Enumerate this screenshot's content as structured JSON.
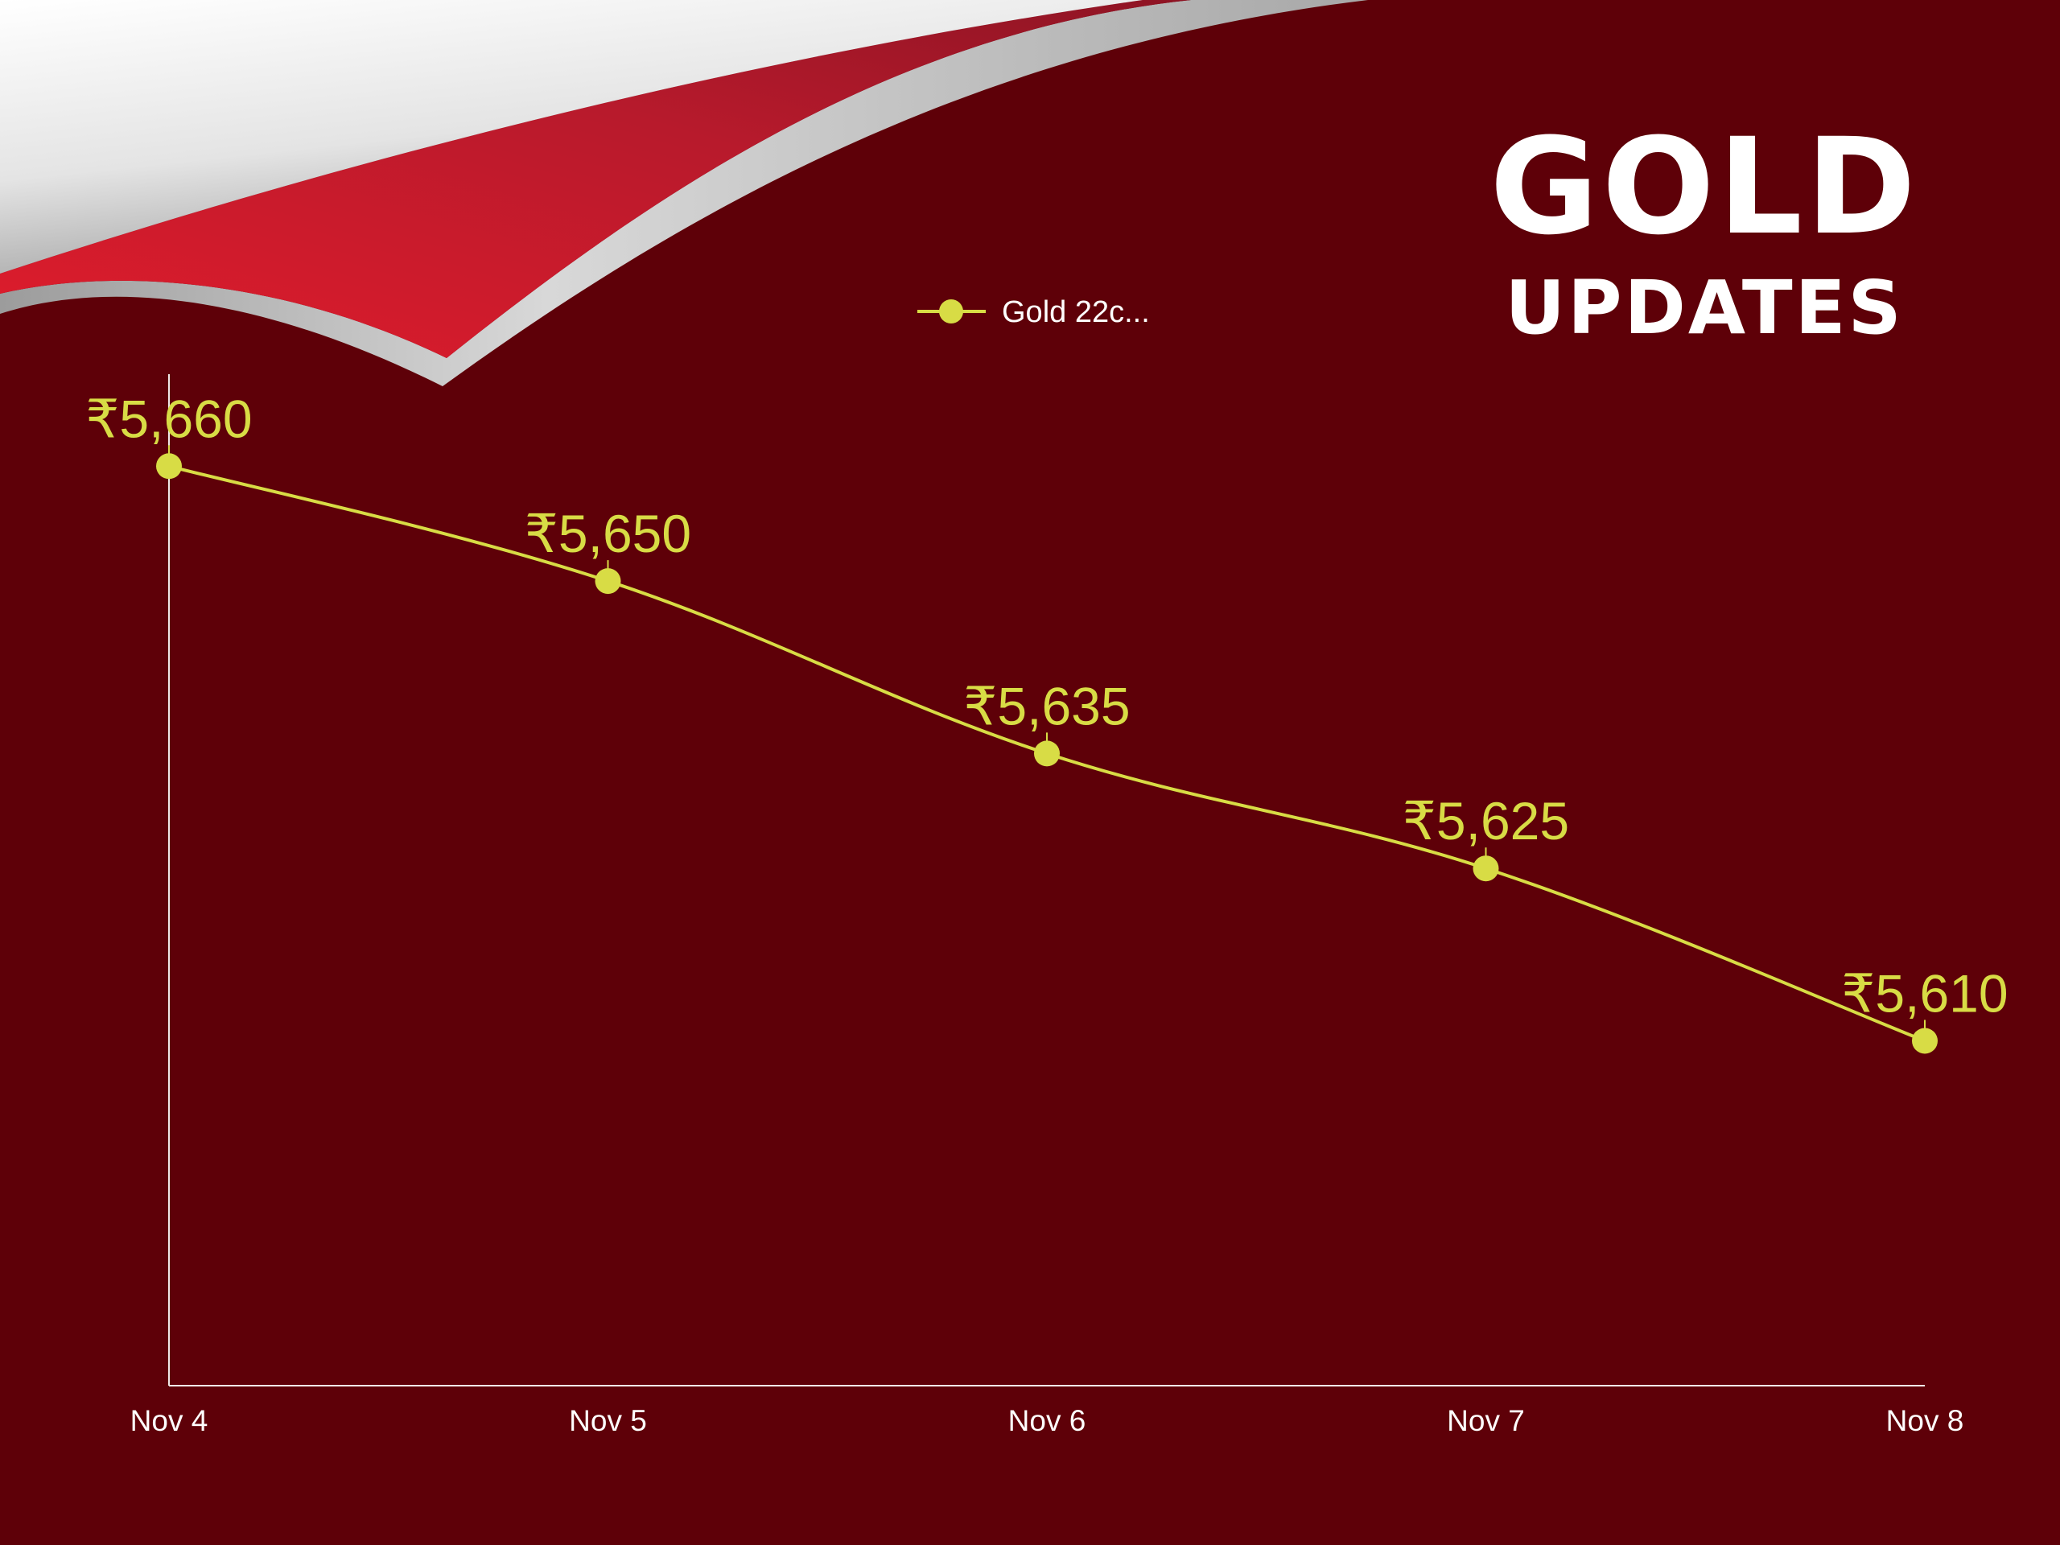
{
  "brand": {
    "title": "GOLD",
    "subtitle": "UPDATES"
  },
  "colors": {
    "background": "#5e0008",
    "series": "#d8dc45",
    "axis": "#f0e8e8",
    "text": "#ffffff",
    "curl_red": "#c41a2a",
    "curl_silver": "#cfcfcf"
  },
  "chart_data": {
    "type": "line",
    "categories": [
      "Nov 4",
      "Nov 5",
      "Nov 6",
      "Nov 7",
      "Nov 8"
    ],
    "series": [
      {
        "name": "Gold 22c...",
        "values": [
          5660,
          5650,
          5635,
          5625,
          5610
        ],
        "labels": [
          "₹5,660",
          "₹5,650",
          "₹5,635",
          "₹5,625",
          "₹5,610"
        ]
      }
    ],
    "ylim": [
      5580,
      5668
    ],
    "smooth": true,
    "legend_position": "top-center",
    "grid": false
  }
}
